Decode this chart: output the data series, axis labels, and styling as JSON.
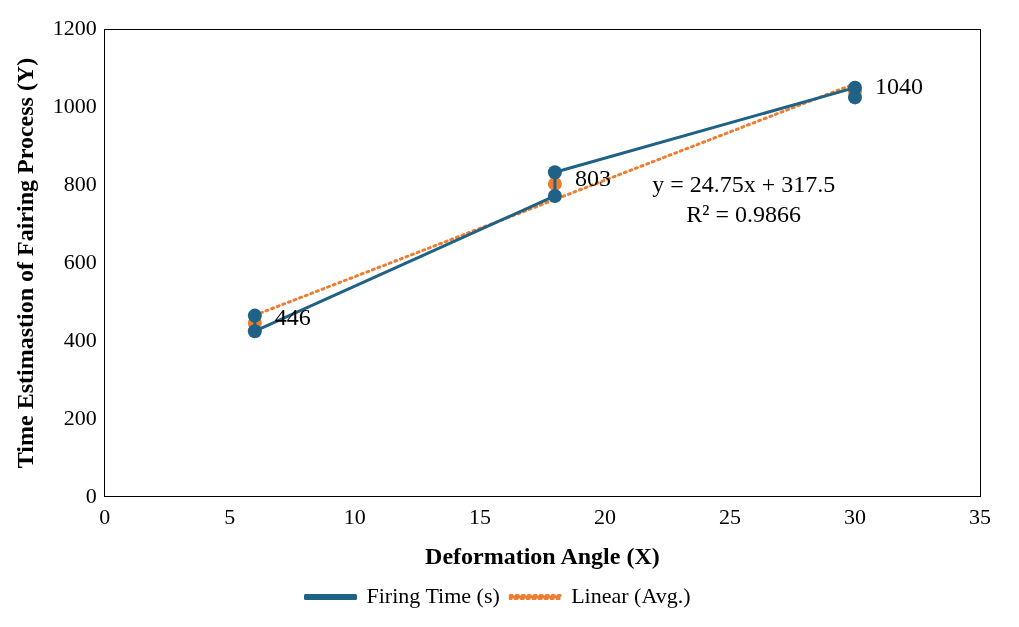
{
  "chart_data": {
    "type": "scatter",
    "xlabel": "Deformation Angle (X)",
    "ylabel": "Time Estimastion of Fairing Process (Y)",
    "xlim": [
      0,
      35
    ],
    "xticks": [
      0,
      5,
      10,
      15,
      20,
      25,
      30,
      35
    ],
    "ylim": [
      0,
      1200
    ],
    "yticks": [
      0,
      200,
      400,
      600,
      800,
      1000,
      1200
    ],
    "grid": false,
    "legend": "bottom",
    "marker": "circle",
    "annotations": [
      "y = 24.75x + 317.5",
      "R² = 0.9866"
    ],
    "series": [
      {
        "name": "Firing Time (s)",
        "type": "line",
        "color": "#1f6286",
        "x": [
          6,
          6,
          18,
          18,
          30,
          30
        ],
        "values": [
          465,
          425,
          772,
          833,
          1050,
          1025
        ]
      },
      {
        "type": "scatter",
        "color": "#ed7d31",
        "x": [
          6,
          18,
          30
        ],
        "values": [
          446,
          803,
          1040
        ],
        "value_labels": [
          "446",
          "803",
          "1040"
        ]
      },
      {
        "name": "Linear (Avg.)",
        "type": "line",
        "color": "#ed7d31",
        "marker": "none",
        "line_style": "dotted",
        "x": [
          6,
          30
        ],
        "values": [
          466,
          1060
        ]
      }
    ]
  }
}
